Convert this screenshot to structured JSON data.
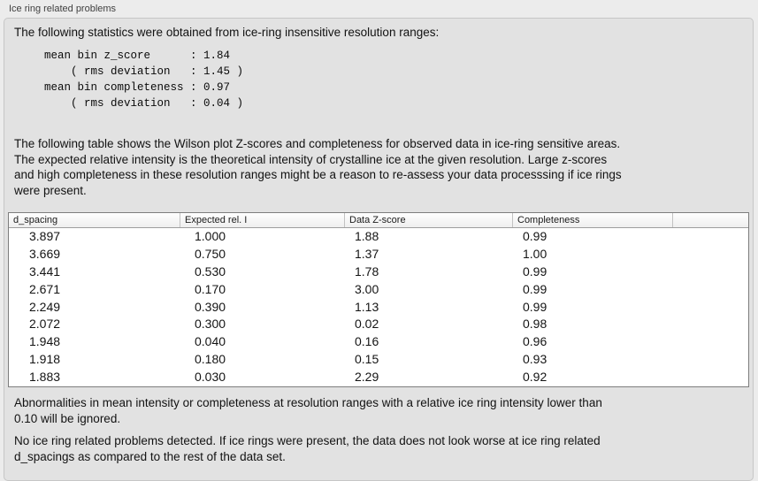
{
  "panel": {
    "title": "Ice ring related problems",
    "intro": "The following statistics were obtained from ice-ring insensitive resolution ranges:",
    "stats_block": "mean bin z_score      : 1.84\n    ( rms deviation   : 1.45 )\nmean bin completeness : 0.97\n    ( rms deviation   : 0.04 )",
    "stats": {
      "mean_bin_z_score": "1.84",
      "z_score_rms_deviation": "1.45",
      "mean_bin_completeness": "0.97",
      "completeness_rms_deviation": "0.04"
    },
    "table_description": "The following table shows the Wilson plot Z-scores and completeness for observed data in ice-ring sensitive areas.\nThe expected relative intensity is the theoretical intensity of crystalline ice at the given resolution. Large z-scores\nand high completeness in these resolution ranges might be a reason to re-assess your data processsing if ice rings\nwere present.",
    "note_ignored": "Abnormalities in mean intensity or completeness at resolution ranges with a relative ice ring intensity lower than\n0.10 will be ignored.",
    "conclusion": "No ice ring related problems detected. If ice rings were present, the data does not look worse at ice ring related\nd_spacings as compared to the rest of the data set."
  },
  "table": {
    "columns": [
      "d_spacing",
      "Expected rel. I",
      "Data Z-score",
      "Completeness"
    ],
    "rows": [
      [
        "3.897",
        "1.000",
        "1.88",
        "0.99"
      ],
      [
        "3.669",
        "0.750",
        "1.37",
        "1.00"
      ],
      [
        "3.441",
        "0.530",
        "1.78",
        "0.99"
      ],
      [
        "2.671",
        "0.170",
        "3.00",
        "0.99"
      ],
      [
        "2.249",
        "0.390",
        "1.13",
        "0.99"
      ],
      [
        "2.072",
        "0.300",
        "0.02",
        "0.98"
      ],
      [
        "1.948",
        "0.040",
        "0.16",
        "0.96"
      ],
      [
        "1.918",
        "0.180",
        "0.15",
        "0.93"
      ],
      [
        "1.883",
        "0.030",
        "2.29",
        "0.92"
      ]
    ]
  },
  "colors": {
    "window_bg": "#ececec",
    "box_bg": "#e2e2e2",
    "box_border": "#c6c6c6",
    "table_border": "#7d7d7d",
    "table_header_bg": "#ffffff",
    "table_body_bg": "#ffffff",
    "text": "#141414"
  }
}
